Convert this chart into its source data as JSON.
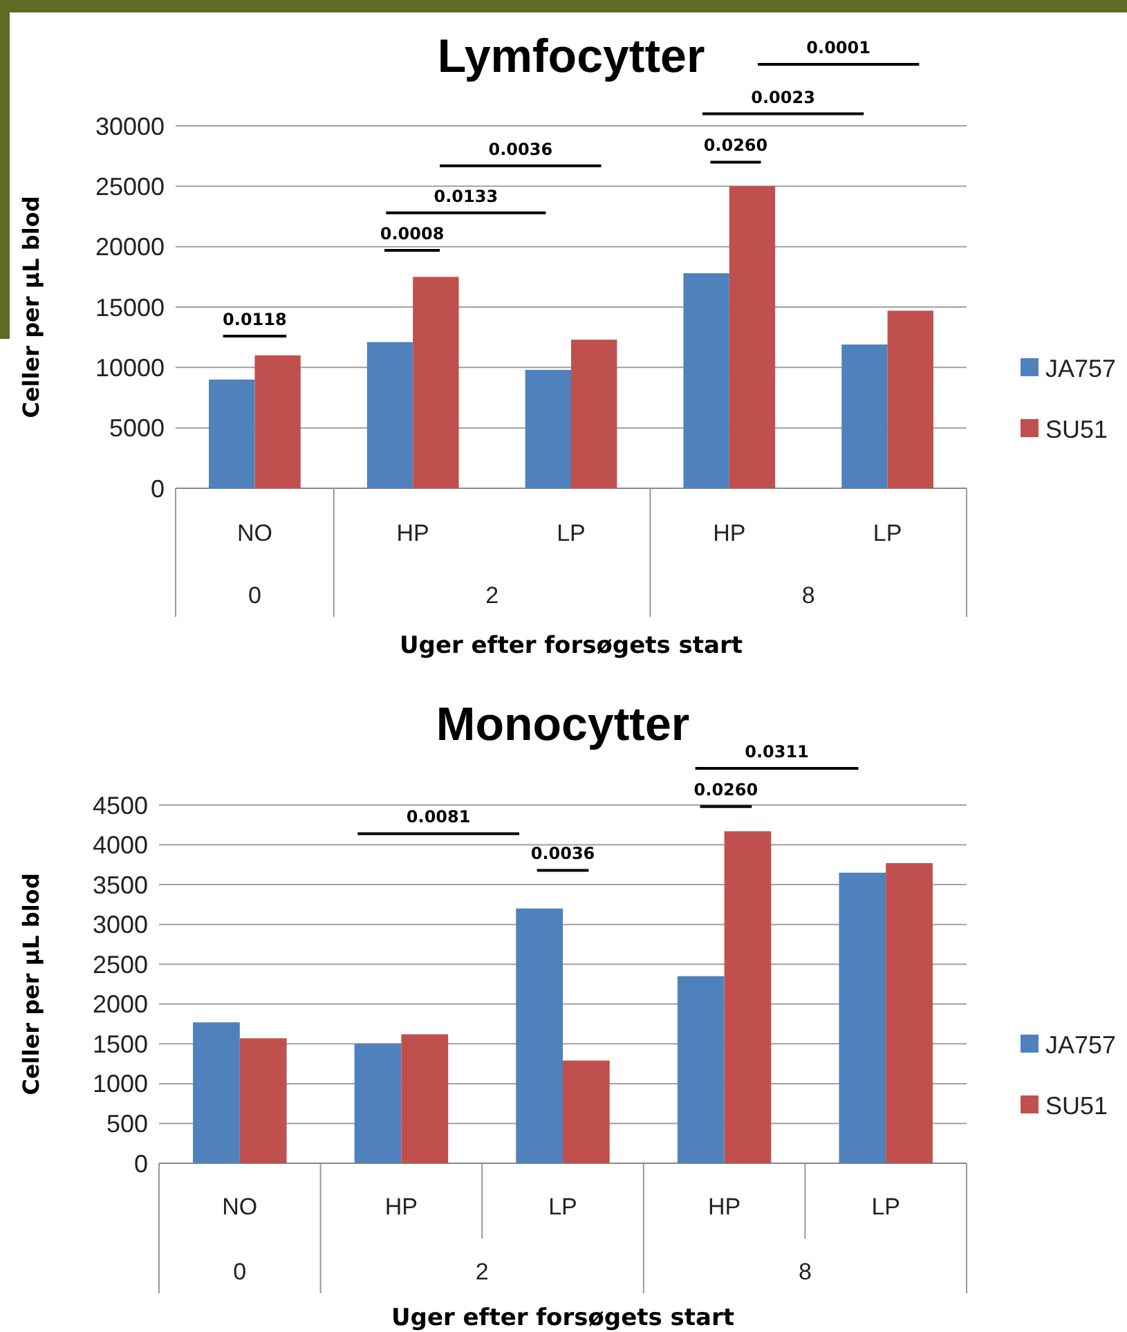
{
  "chart_data": [
    {
      "type": "bar",
      "title": "Lymfocytter",
      "xlabel": "Uger efter forsøgets start",
      "ylabel": "Celler per µL blod",
      "categories": [
        "NO",
        "HP",
        "LP",
        "HP",
        "LP"
      ],
      "series": [
        {
          "name": "JA757",
          "color": "#4f81bd",
          "values": [
            9000,
            12100,
            9800,
            17800,
            11900
          ]
        },
        {
          "name": "SU51",
          "color": "#c0504d",
          "values": [
            11000,
            17500,
            12300,
            25000,
            14700
          ]
        }
      ],
      "ylim": [
        0,
        30000
      ],
      "yticks": [
        0,
        5000,
        10000,
        15000,
        20000,
        25000,
        30000
      ],
      "grid": "y",
      "legend": "right",
      "annotations": [
        "0.0118",
        "0.0008",
        "0.0133",
        "0.0036",
        "0.0260",
        "0.0023",
        "0.0001",
        "0",
        "2",
        "8"
      ]
    },
    {
      "type": "bar",
      "title": "Monocytter",
      "xlabel": "Uger efter forsøgets start",
      "ylabel": "Celler per µL blod",
      "categories": [
        "NO",
        "HP",
        "LP",
        "HP",
        "LP"
      ],
      "series": [
        {
          "name": "JA757",
          "color": "#4f81bd",
          "values": [
            1770,
            1500,
            3200,
            2350,
            3650
          ]
        },
        {
          "name": "SU51",
          "color": "#c0504d",
          "values": [
            1570,
            1620,
            1290,
            4170,
            3770
          ]
        }
      ],
      "ylim": [
        0,
        4500
      ],
      "yticks": [
        0,
        500,
        1000,
        1500,
        2000,
        2500,
        3000,
        3500,
        4000,
        4500
      ],
      "grid": "y",
      "legend": "right",
      "annotations": [
        "0.0081",
        "0.0036",
        "0.0260",
        "0.0311",
        "0",
        "2",
        "8"
      ]
    }
  ]
}
